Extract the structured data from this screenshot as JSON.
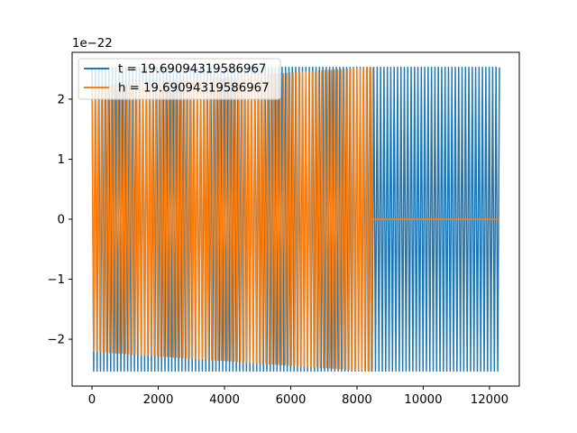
{
  "chart_data": {
    "type": "line",
    "title": "",
    "xlabel": "",
    "ylabel": "",
    "y_offset_text": "1e−22",
    "xlim": [
      -600,
      12900
    ],
    "ylim": [
      -2.78,
      2.78
    ],
    "x_ticks": [
      0,
      2000,
      4000,
      6000,
      8000,
      10000,
      12000
    ],
    "x_tick_labels": [
      "0",
      "2000",
      "4000",
      "6000",
      "8000",
      "10000",
      "12000"
    ],
    "y_ticks": [
      2,
      1,
      0,
      -1,
      -2
    ],
    "y_tick_labels": [
      "2",
      "1",
      "0",
      "−1",
      "−2"
    ],
    "legend_position": "upper-left",
    "series": [
      {
        "name": "t = 19.69094319586967",
        "color": "#1f77b4",
        "x_range": [
          0,
          12300
        ],
        "amplitude_start": 2.53,
        "amplitude_end": 2.53,
        "cycles": 120
      },
      {
        "name": "h = 19.69094319586967",
        "color": "#ff7f0e",
        "x_range": [
          0,
          8480
        ],
        "amplitude_start": 2.2,
        "amplitude_end": 2.53,
        "cycles": 88,
        "after_value": 0.0,
        "after_range": [
          8480,
          12300
        ]
      }
    ]
  }
}
